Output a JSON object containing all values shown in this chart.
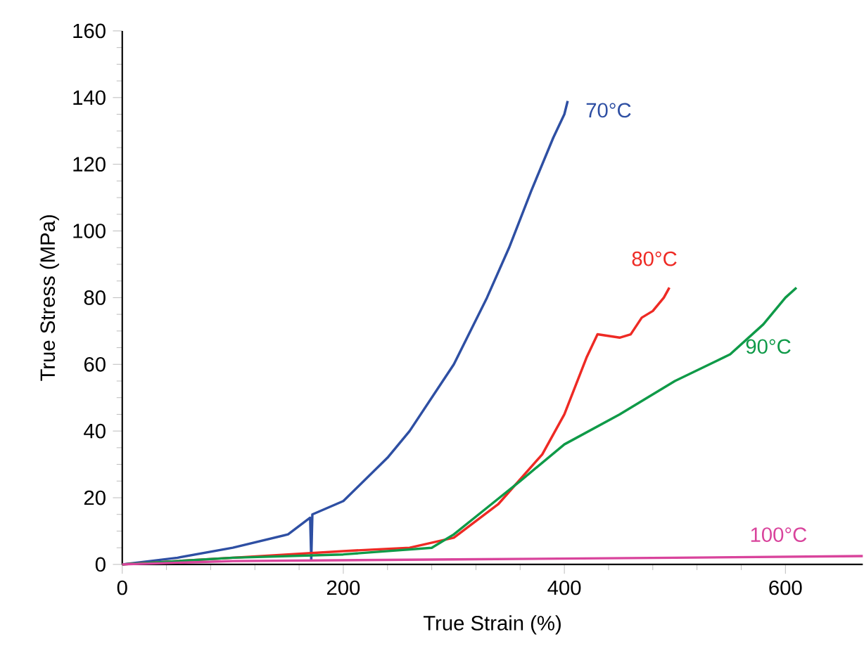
{
  "chart_data": {
    "type": "line",
    "xlabel": "True Strain (%)",
    "ylabel": "True Stress (MPa)",
    "xlim": [
      0,
      670
    ],
    "ylim": [
      0,
      160
    ],
    "xticks": [
      0,
      200,
      400,
      600
    ],
    "yticks": [
      0,
      20,
      40,
      60,
      80,
      100,
      120,
      140,
      160
    ],
    "grid": false,
    "legend": false,
    "marker": "none",
    "line_style": "solid",
    "series": [
      {
        "name": "70°C",
        "color": "#2e4fa3",
        "x": [
          0,
          50,
          100,
          150,
          170,
          171,
          172,
          200,
          240,
          260,
          300,
          330,
          350,
          370,
          390,
          400,
          403
        ],
        "values": [
          0,
          2,
          5,
          9,
          14,
          1.5,
          15,
          19,
          32,
          40,
          60,
          80,
          95,
          112,
          128,
          135,
          139
        ]
      },
      {
        "name": "80°C",
        "color": "#ee2a24",
        "x": [
          0,
          100,
          200,
          260,
          300,
          340,
          380,
          400,
          420,
          430,
          450,
          460,
          470,
          480,
          490,
          495
        ],
        "values": [
          0,
          2,
          4,
          5,
          8,
          18,
          33,
          45,
          62,
          69,
          68,
          69,
          74,
          76,
          80,
          83
        ]
      },
      {
        "name": "90°C",
        "color": "#0f9a48",
        "x": [
          0,
          100,
          200,
          280,
          300,
          330,
          360,
          400,
          450,
          500,
          550,
          580,
          600,
          610
        ],
        "values": [
          0,
          2,
          3,
          5,
          9,
          17,
          25,
          36,
          45,
          55,
          63,
          72,
          80,
          83
        ]
      },
      {
        "name": "100°C",
        "color": "#d9449c",
        "x": [
          0,
          100,
          300,
          500,
          670
        ],
        "values": [
          0,
          1,
          1.5,
          2,
          2.5
        ]
      }
    ]
  }
}
